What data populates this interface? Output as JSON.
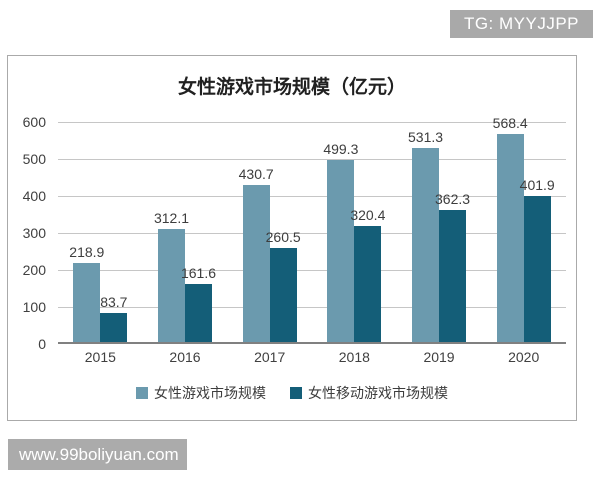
{
  "watermarks": {
    "top_badge": "TG: MYYJJPP",
    "bottom_badge": "www.99boliyuan.com",
    "badge_bg": "#a9a9a9"
  },
  "chart_data": {
    "type": "bar",
    "title": "女性游戏市场规模（亿元）",
    "categories": [
      "2015",
      "2016",
      "2017",
      "2018",
      "2019",
      "2020"
    ],
    "series": [
      {
        "name": "女性游戏市场规模",
        "color": "#6B9AAE",
        "values": [
          218.9,
          312.1,
          430.7,
          499.3,
          531.3,
          568.4
        ]
      },
      {
        "name": "女性移动游戏市场规模",
        "color": "#145E78",
        "values": [
          83.7,
          161.6,
          260.5,
          320.4,
          362.3,
          401.9
        ]
      }
    ],
    "xlabel": "",
    "ylabel": "",
    "y_ticks": [
      0,
      100,
      200,
      300,
      400,
      500,
      600
    ],
    "ylim": [
      0,
      650
    ],
    "grid": true,
    "gridline_color": "#c6c6c6",
    "axis_color": "#808080",
    "legend_position": "bottom"
  }
}
